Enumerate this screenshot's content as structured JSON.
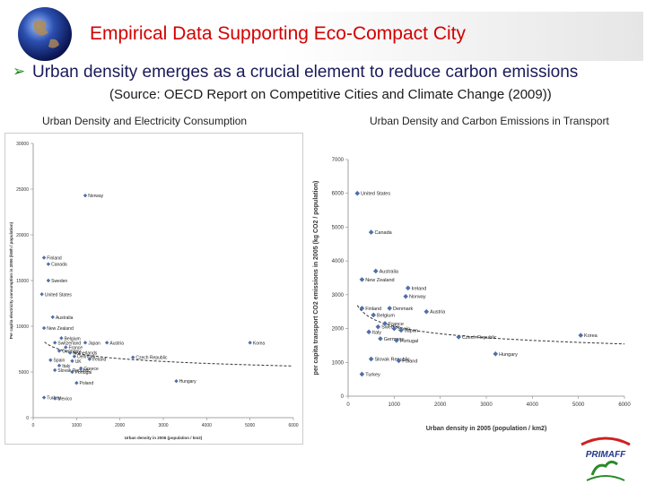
{
  "header": {
    "title": "Empirical Data Supporting Eco-Compact City",
    "bullet": "Urban density emerges as a crucial element to reduce carbon emissions",
    "source": "(Source: OECD Report on Competitive Cities and Climate Change (2009))"
  },
  "colors": {
    "title": "#d40000",
    "marker": "#4f6fa8",
    "trend": "#333333"
  },
  "logo": {
    "text": "PRIMAFF"
  },
  "chart_data": [
    {
      "type": "scatter",
      "title": "Urban Density and Electricity Consumption",
      "xlabel": "Urban density in 2006 (population / km2)",
      "ylabel": "Per capita electricity consumption in 2006 (kWh / population)",
      "xlim": [
        0,
        6000
      ],
      "ylim": [
        0,
        30000
      ],
      "xticks": [
        "0",
        "1000",
        "2000",
        "3000",
        "4000",
        "5000",
        "6000"
      ],
      "yticks": [
        "0",
        "5000",
        "10000",
        "15000",
        "20000",
        "25000",
        "30000"
      ],
      "trend": "power",
      "points": [
        {
          "label": "Norway",
          "x": 1200,
          "y": 24300
        },
        {
          "label": "Finland",
          "x": 250,
          "y": 17500
        },
        {
          "label": "Canada",
          "x": 350,
          "y": 16800
        },
        {
          "label": "Sweden",
          "x": 350,
          "y": 15000
        },
        {
          "label": "United States",
          "x": 200,
          "y": 13500
        },
        {
          "label": "Australia",
          "x": 450,
          "y": 11000
        },
        {
          "label": "New Zealand",
          "x": 250,
          "y": 9800
        },
        {
          "label": "Belgium",
          "x": 650,
          "y": 8700
        },
        {
          "label": "Switzerland",
          "x": 500,
          "y": 8200
        },
        {
          "label": "Japan",
          "x": 1200,
          "y": 8200
        },
        {
          "label": "Austria",
          "x": 1700,
          "y": 8200
        },
        {
          "label": "France",
          "x": 750,
          "y": 7700
        },
        {
          "label": "Germany",
          "x": 600,
          "y": 7300
        },
        {
          "label": "Netherlands",
          "x": 850,
          "y": 7100
        },
        {
          "label": "Denmark",
          "x": 950,
          "y": 6700
        },
        {
          "label": "UK",
          "x": 900,
          "y": 6200
        },
        {
          "label": "Korea",
          "x": 5000,
          "y": 8200
        },
        {
          "label": "Czech Republic",
          "x": 2300,
          "y": 6600
        },
        {
          "label": "Ireland",
          "x": 1300,
          "y": 6400
        },
        {
          "label": "Spain",
          "x": 400,
          "y": 6300
        },
        {
          "label": "Italy",
          "x": 600,
          "y": 5700
        },
        {
          "label": "Greece",
          "x": 1100,
          "y": 5400
        },
        {
          "label": "Slovak Republic",
          "x": 500,
          "y": 5200
        },
        {
          "label": "Portugal",
          "x": 900,
          "y": 5000
        },
        {
          "label": "Hungary",
          "x": 3300,
          "y": 4000
        },
        {
          "label": "Poland",
          "x": 1000,
          "y": 3800
        },
        {
          "label": "Turkey",
          "x": 250,
          "y": 2200
        },
        {
          "label": "Mexico",
          "x": 500,
          "y": 2100
        }
      ]
    },
    {
      "type": "scatter",
      "title": "Urban Density and Carbon Emissions in Transport",
      "xlabel": "Urban density in 2005 (population / km2)",
      "ylabel": "per capita transport CO2 emissions in 2005 (kg CO2 / population)",
      "xlim": [
        0,
        6000
      ],
      "ylim": [
        0,
        7000
      ],
      "xticks": [
        "0",
        "1000",
        "2000",
        "3000",
        "4000",
        "5000",
        "6000"
      ],
      "yticks": [
        "0",
        "1000",
        "2000",
        "3000",
        "4000",
        "5000",
        "6000",
        "7000"
      ],
      "trend": "power",
      "points": [
        {
          "label": "United States",
          "x": 200,
          "y": 6000
        },
        {
          "label": "Canada",
          "x": 500,
          "y": 4850
        },
        {
          "label": "Australia",
          "x": 600,
          "y": 3700
        },
        {
          "label": "New Zealand",
          "x": 300,
          "y": 3450
        },
        {
          "label": "Ireland",
          "x": 1300,
          "y": 3200
        },
        {
          "label": "Norway",
          "x": 1250,
          "y": 2950
        },
        {
          "label": "Finland",
          "x": 300,
          "y": 2600
        },
        {
          "label": "Denmark",
          "x": 900,
          "y": 2600
        },
        {
          "label": "Belgium",
          "x": 550,
          "y": 2400
        },
        {
          "label": "Austria",
          "x": 1700,
          "y": 2500
        },
        {
          "label": "France",
          "x": 800,
          "y": 2150
        },
        {
          "label": "Sweden",
          "x": 650,
          "y": 2050
        },
        {
          "label": "Spain",
          "x": 1000,
          "y": 2000
        },
        {
          "label": "Japan",
          "x": 1150,
          "y": 1950
        },
        {
          "label": "Italy",
          "x": 450,
          "y": 1900
        },
        {
          "label": "Germany",
          "x": 700,
          "y": 1700
        },
        {
          "label": "Portugal",
          "x": 1050,
          "y": 1650
        },
        {
          "label": "Czech Republic",
          "x": 2400,
          "y": 1750
        },
        {
          "label": "Hungary",
          "x": 3200,
          "y": 1250
        },
        {
          "label": "Korea",
          "x": 5050,
          "y": 1800
        },
        {
          "label": "Slovak Republic",
          "x": 500,
          "y": 1100
        },
        {
          "label": "Poland",
          "x": 1100,
          "y": 1050
        },
        {
          "label": "Turkey",
          "x": 300,
          "y": 650
        }
      ]
    }
  ]
}
